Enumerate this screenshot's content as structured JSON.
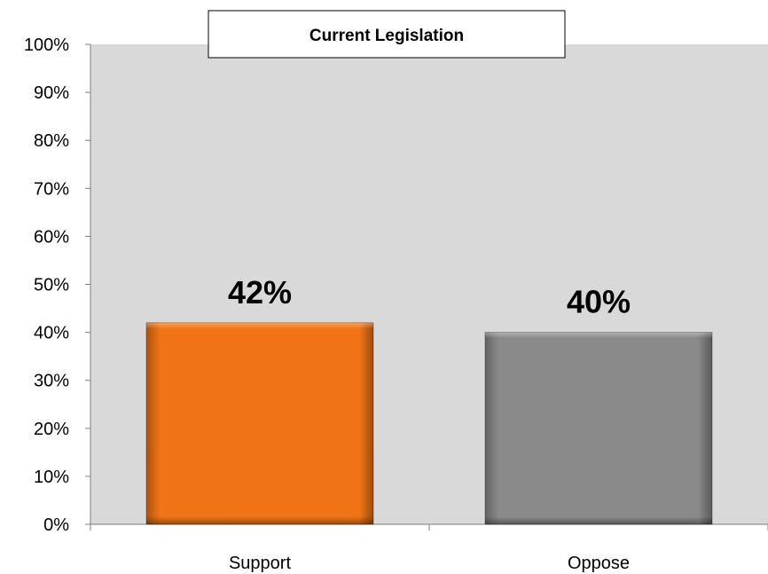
{
  "chart_data": {
    "type": "bar",
    "title": "Current Legislation",
    "categories": [
      "Support",
      "Oppose"
    ],
    "values": [
      42,
      40
    ],
    "data_labels": [
      "42%",
      "40%"
    ],
    "bar_colors": [
      "#f07415",
      "#8a8a8a"
    ],
    "ylim": [
      0,
      100
    ],
    "yticks": [
      0,
      10,
      20,
      30,
      40,
      50,
      60,
      70,
      80,
      90,
      100
    ],
    "ytick_labels": [
      "0%",
      "10%",
      "20%",
      "30%",
      "40%",
      "50%",
      "60%",
      "70%",
      "80%",
      "90%",
      "100%"
    ],
    "xlabel": "",
    "ylabel": "",
    "grid": false,
    "plot_background": "#d9d9d9"
  }
}
